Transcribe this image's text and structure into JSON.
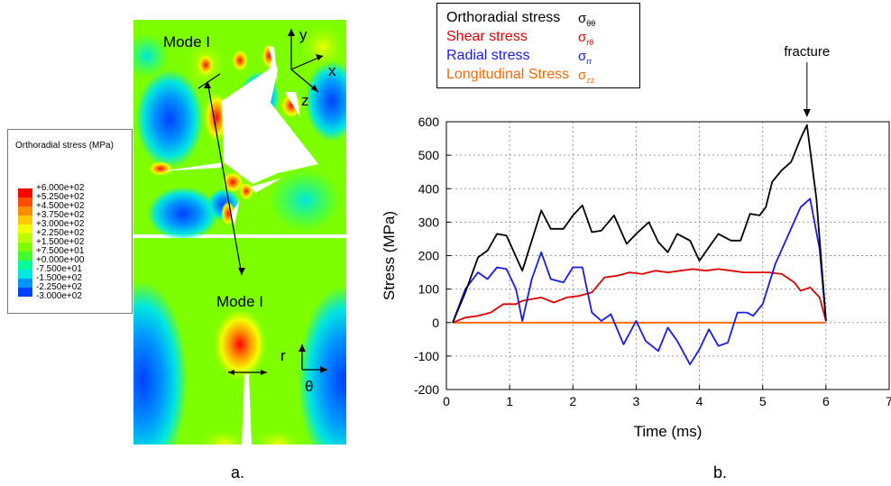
{
  "colorbar": {
    "title": "Orthoradial stress (MPa)",
    "levels": [
      {
        "label": "+6.000e+02",
        "color": "#ff0000"
      },
      {
        "label": "+5.250e+02",
        "color": "#ff4d00"
      },
      {
        "label": "+4.500e+02",
        "color": "#ff8c00"
      },
      {
        "label": "+3.750e+02",
        "color": "#ffc800"
      },
      {
        "label": "+3.000e+02",
        "color": "#f2ff00"
      },
      {
        "label": "+2.250e+02",
        "color": "#b9ff00"
      },
      {
        "label": "+1.500e+02",
        "color": "#7dff00"
      },
      {
        "label": "+7.500e+01",
        "color": "#40ff30"
      },
      {
        "label": "+0.000e+00",
        "color": "#00ff9a"
      },
      {
        "label": "-7.500e+01",
        "color": "#00e6e0"
      },
      {
        "label": "-1.500e+02",
        "color": "#0095ff"
      },
      {
        "label": "-2.250e+02",
        "color": "#0040ff"
      },
      {
        "label": "-3.000e+02",
        "color": "#0000ff"
      }
    ]
  },
  "contour": {
    "mode_top": "Mode I",
    "mode_bottom": "Mode I",
    "axis_y": "y",
    "axis_x": "x",
    "axis_z": "z",
    "axis_r": "r",
    "axis_theta": "θ"
  },
  "panel_labels": {
    "a": "a.",
    "b": "b."
  },
  "chart_data": {
    "type": "line",
    "xlabel": "Time (ms)",
    "ylabel": "Stress (MPa)",
    "xlim": [
      0,
      7
    ],
    "ylim": [
      -200,
      600
    ],
    "xticks": [
      0,
      1,
      2,
      3,
      4,
      5,
      6,
      7
    ],
    "yticks": [
      -200,
      -100,
      0,
      100,
      200,
      300,
      400,
      500,
      600
    ],
    "grid": true,
    "legend_position": "top-left",
    "annotation": {
      "text": "fracture",
      "x": 5.7,
      "y": 600
    },
    "series": [
      {
        "name": "Orthoradial stress",
        "symbol": "σ",
        "subscript": "θθ",
        "color": "#000000",
        "x": [
          0.1,
          0.3,
          0.5,
          0.65,
          0.8,
          0.95,
          1.2,
          1.5,
          1.65,
          1.85,
          2.0,
          2.15,
          2.3,
          2.45,
          2.65,
          2.85,
          3.0,
          3.2,
          3.35,
          3.5,
          3.65,
          3.85,
          4.0,
          4.15,
          4.3,
          4.5,
          4.65,
          4.8,
          4.95,
          5.05,
          5.15,
          5.3,
          5.45,
          5.6,
          5.7,
          5.85,
          6.0
        ],
        "y": [
          0,
          90,
          195,
          215,
          265,
          260,
          155,
          335,
          280,
          280,
          320,
          350,
          270,
          275,
          320,
          235,
          265,
          300,
          240,
          210,
          265,
          245,
          185,
          225,
          265,
          245,
          245,
          325,
          320,
          345,
          420,
          455,
          480,
          550,
          590,
          370,
          5
        ]
      },
      {
        "name": "Shear stress",
        "symbol": "σ",
        "subscript": "rθ",
        "color": "#e00000",
        "x": [
          0.1,
          0.3,
          0.5,
          0.7,
          0.9,
          1.1,
          1.2,
          1.5,
          1.7,
          1.9,
          2.1,
          2.3,
          2.5,
          2.7,
          2.9,
          3.1,
          3.3,
          3.5,
          3.7,
          3.9,
          4.1,
          4.3,
          4.5,
          4.7,
          4.9,
          5.1,
          5.3,
          5.5,
          5.6,
          5.75,
          5.9,
          6.0
        ],
        "y": [
          0,
          15,
          20,
          30,
          55,
          55,
          65,
          75,
          60,
          75,
          80,
          90,
          135,
          140,
          150,
          145,
          155,
          150,
          155,
          160,
          155,
          160,
          155,
          150,
          150,
          150,
          145,
          120,
          95,
          105,
          75,
          5
        ]
      },
      {
        "name": "Radial stress",
        "symbol": "σ",
        "subscript": "rr",
        "color": "#1a1ae6",
        "x": [
          0.1,
          0.3,
          0.5,
          0.65,
          0.8,
          0.95,
          1.1,
          1.2,
          1.35,
          1.5,
          1.65,
          1.85,
          2.0,
          2.15,
          2.3,
          2.45,
          2.6,
          2.8,
          3.0,
          3.15,
          3.35,
          3.5,
          3.65,
          3.85,
          4.0,
          4.15,
          4.3,
          4.45,
          4.6,
          4.75,
          4.85,
          5.0,
          5.2,
          5.4,
          5.6,
          5.75,
          5.9,
          6.0
        ],
        "y": [
          0,
          100,
          150,
          130,
          165,
          160,
          100,
          5,
          130,
          210,
          130,
          120,
          165,
          165,
          30,
          5,
          25,
          -65,
          5,
          -55,
          -85,
          -15,
          -55,
          -125,
          -80,
          -20,
          -70,
          -60,
          30,
          30,
          20,
          55,
          175,
          260,
          345,
          370,
          220,
          5
        ]
      },
      {
        "name": "Longitudinal Stress",
        "symbol": "σ",
        "subscript": "zz",
        "color": "#ff6600",
        "x": [
          0.1,
          6.0
        ],
        "y": [
          0,
          0
        ]
      }
    ]
  }
}
